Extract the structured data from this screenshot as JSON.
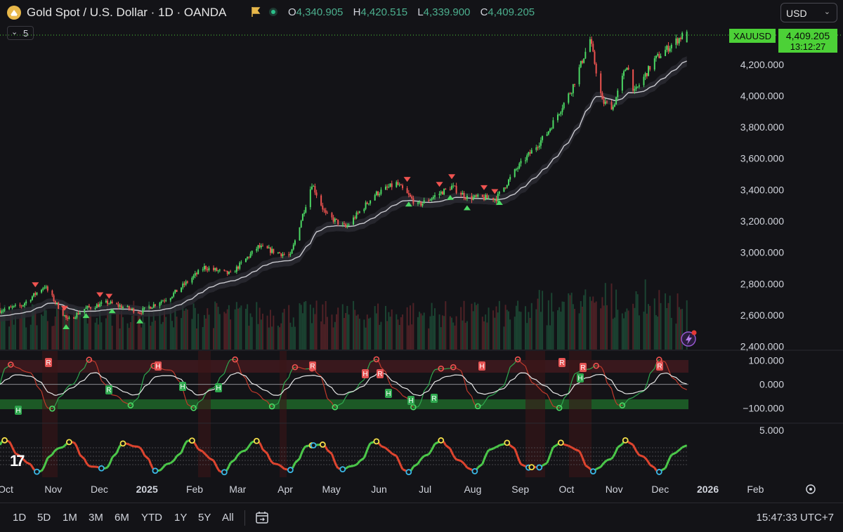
{
  "header": {
    "title": "Gold Spot / U.S. Dollar · 1D · OANDA",
    "ohlc": [
      {
        "key": "O",
        "value": "4,340.905"
      },
      {
        "key": "H",
        "value": "4,420.515"
      },
      {
        "key": "L",
        "value": "4,339.900"
      },
      {
        "key": "C",
        "value": "4,409.205"
      }
    ],
    "currency": "USD",
    "collapse_count": "5"
  },
  "price_label": {
    "symbol": "XAUUSD",
    "price": "4,409.205",
    "countdown": "13:12:27"
  },
  "colors": {
    "up": "#26a69a",
    "up_bright": "#4cd964",
    "down": "#ef5350",
    "bg": "#131317",
    "accent": "#4cd137",
    "ema": "#c9c9cf"
  },
  "chart_data": [
    {
      "type": "candlestick",
      "title": "Gold Spot / U.S. Dollar · 1D · OANDA",
      "y_ticks": [
        "4,200.000",
        "4,000.000",
        "3,800.000",
        "3,600.000",
        "3,400.000",
        "3,200.000",
        "3,000.000",
        "2,800.000",
        "2,600.000",
        "2,400.000"
      ],
      "ylim": [
        2380,
        4450
      ],
      "x_ticks": [
        "Oct",
        "Nov",
        "Dec",
        "2025",
        "Feb",
        "Mar",
        "Apr",
        "May",
        "Jun",
        "Jul",
        "Aug",
        "Sep",
        "Oct",
        "Nov",
        "Dec",
        "2026",
        "Feb"
      ],
      "x_tick_dates": [
        "2024-10-01",
        "2024-11-01",
        "2024-12-01",
        "2025-01-01",
        "2025-02-01",
        "2025-03-01",
        "2025-04-01",
        "2025-05-01",
        "2025-06-01",
        "2025-07-01",
        "2025-08-01",
        "2025-09-01",
        "2025-10-01",
        "2025-11-01",
        "2025-12-01",
        "2026-01-01",
        "2026-02-01"
      ],
      "xlim": [
        "2024-10-01",
        "2026-02-15"
      ],
      "close_anchors": [
        [
          "2024-10-01",
          2630
        ],
        [
          "2024-10-15",
          2660
        ],
        [
          "2024-10-30",
          2785
        ],
        [
          "2024-11-14",
          2565
        ],
        [
          "2024-11-25",
          2640
        ],
        [
          "2024-12-10",
          2680
        ],
        [
          "2024-12-31",
          2620
        ],
        [
          "2025-01-20",
          2720
        ],
        [
          "2025-02-11",
          2905
        ],
        [
          "2025-02-28",
          2860
        ],
        [
          "2025-03-18",
          3035
        ],
        [
          "2025-04-08",
          2975
        ],
        [
          "2025-04-22",
          3440
        ],
        [
          "2025-05-01",
          3240
        ],
        [
          "2025-05-14",
          3160
        ],
        [
          "2025-06-02",
          3370
        ],
        [
          "2025-06-16",
          3440
        ],
        [
          "2025-06-30",
          3300
        ],
        [
          "2025-07-22",
          3420
        ],
        [
          "2025-08-01",
          3350
        ],
        [
          "2025-08-20",
          3345
        ],
        [
          "2025-09-02",
          3530
        ],
        [
          "2025-09-22",
          3760
        ],
        [
          "2025-10-08",
          4040
        ],
        [
          "2025-10-20",
          4360
        ],
        [
          "2025-10-28",
          3960
        ],
        [
          "2025-11-04",
          3930
        ],
        [
          "2025-11-13",
          4200
        ],
        [
          "2025-11-18",
          4020
        ],
        [
          "2025-12-01",
          4230
        ],
        [
          "2025-12-22",
          4409
        ]
      ],
      "last": {
        "open": 4340.905,
        "high": 4420.515,
        "low": 4339.9,
        "close": 4409.205
      },
      "volume": "shown as bars at bottom of price pane",
      "signals": {
        "sell_markers": [
          "2024-10-24",
          "2024-11-12",
          "2024-12-05",
          "2024-12-11",
          "2025-06-23",
          "2025-07-14",
          "2025-07-22",
          "2025-08-12",
          "2025-08-19"
        ],
        "buy_markers": [
          "2024-11-13",
          "2024-11-26",
          "2024-12-13",
          "2024-12-31",
          "2025-06-24",
          "2025-07-21",
          "2025-08-01",
          "2025-08-22"
        ]
      },
      "grid": false
    },
    {
      "type": "line",
      "y_ticks": [
        "100.000",
        "0.000",
        "−100.000"
      ],
      "ylim": [
        -160,
        140
      ],
      "series": [
        {
          "values_range": [
            -120,
            110
          ]
        }
      ],
      "markers": [
        "R",
        "H"
      ],
      "grid": false
    },
    {
      "type": "line",
      "y_ticks": [
        "5.000"
      ],
      "series": [
        {
          "values_range": [
            -4,
            4
          ]
        }
      ],
      "markers": [
        "R",
        "H"
      ],
      "grid": false
    }
  ],
  "footer": {
    "ranges": [
      "1D",
      "5D",
      "1M",
      "3M",
      "6M",
      "YTD",
      "1Y",
      "5Y",
      "All"
    ],
    "time": "15:47:33 UTC+7"
  }
}
